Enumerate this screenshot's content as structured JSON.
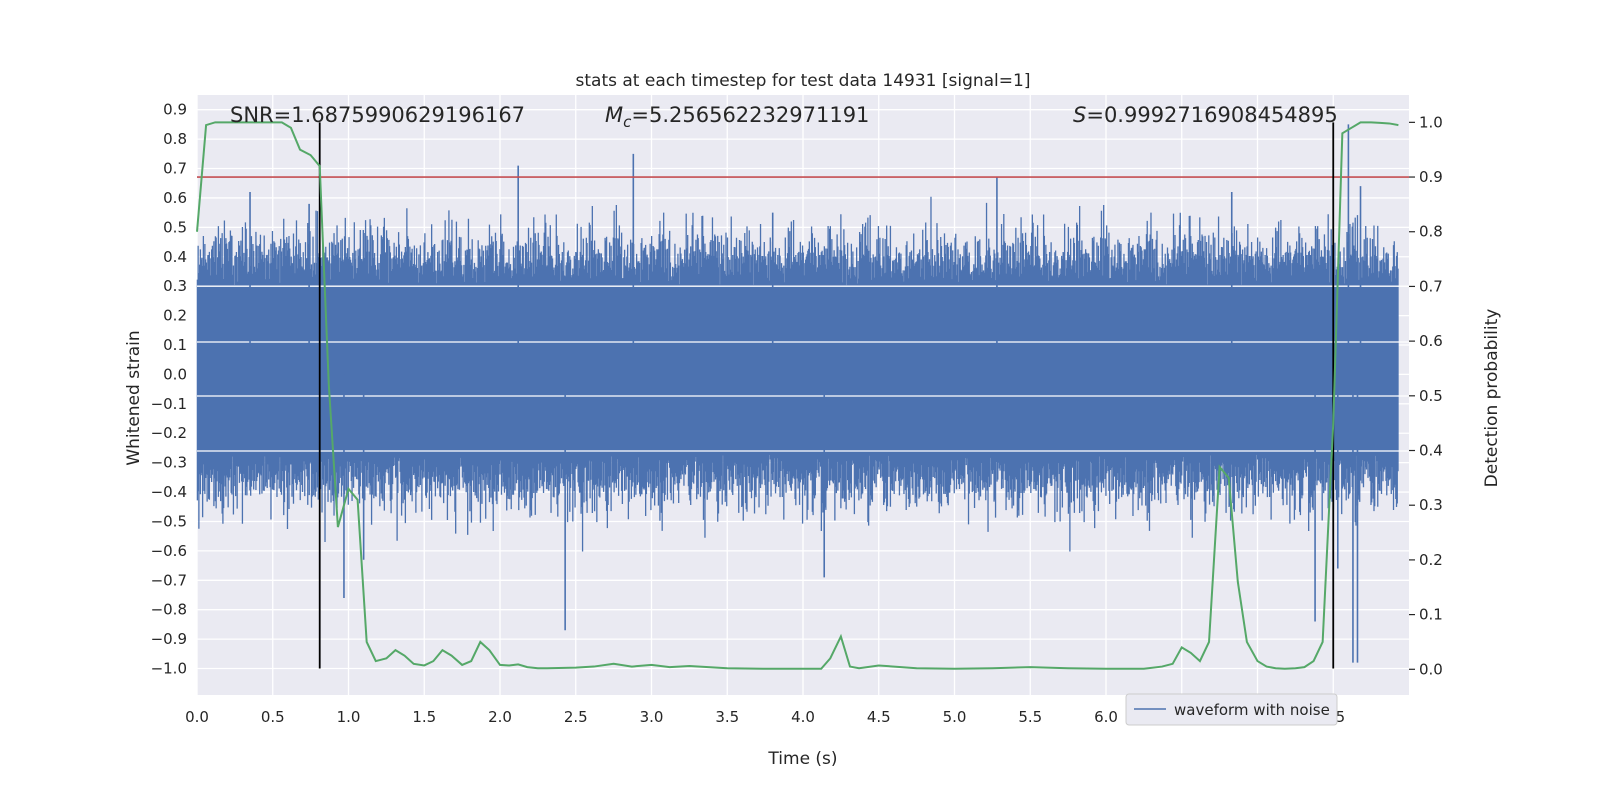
{
  "chart_data": {
    "type": "line",
    "title": "stats at each timestep for test data 14931 [signal=1]",
    "xlabel": "Time (s)",
    "ylabel": "Whitened strain",
    "y2label": "Detection probability",
    "xlim": [
      0.0,
      8.0
    ],
    "ylim": [
      -1.09,
      0.95
    ],
    "y2lim": [
      -0.047,
      1.05
    ],
    "xticks": [
      0.0,
      0.5,
      1.0,
      1.5,
      2.0,
      2.5,
      3.0,
      3.5,
      4.0,
      4.5,
      5.0,
      5.5,
      6.0,
      6.5,
      7.0,
      7.5
    ],
    "xtick_labels": [
      "0.0",
      "0.5",
      "1.0",
      "1.5",
      "2.0",
      "2.5",
      "3.0",
      "3.5",
      "4.0",
      "4.5",
      "5.0",
      "5.5",
      "6.0",
      "6.5",
      "7.0",
      "7.5"
    ],
    "yticks": [
      0.9,
      0.8,
      0.7,
      0.6,
      0.5,
      0.4,
      0.3,
      0.2,
      0.1,
      0.0,
      -0.1,
      -0.2,
      -0.3,
      -0.4,
      -0.5,
      -0.6,
      -0.7,
      -0.8,
      -0.9,
      -1.0
    ],
    "ytick_labels": [
      "0.9",
      "0.8",
      "0.7",
      "0.6",
      "0.5",
      "0.4",
      "0.3",
      "0.2",
      "0.1",
      "0.0",
      "−0.1",
      "−0.2",
      "−0.3",
      "−0.4",
      "−0.5",
      "−0.6",
      "−0.7",
      "−0.8",
      "−0.9",
      "−1.0"
    ],
    "y2ticks": [
      1.0,
      0.9,
      0.8,
      0.7,
      0.6,
      0.5,
      0.4,
      0.3,
      0.2,
      0.1,
      0.0
    ],
    "y2tick_labels": [
      "1.0",
      "0.9",
      "0.8",
      "0.7",
      "0.6",
      "0.5",
      "0.4",
      "0.3",
      "0.2",
      "0.1",
      "0.0"
    ],
    "grid": true,
    "legend": {
      "entries": [
        "waveform with noise"
      ],
      "placement": "lower-right"
    },
    "annotations": {
      "snr": "SNR=1.6875990629196167",
      "mc_symbol": "M",
      "mc_sub": "c",
      "mc_value": "=5.256562232971191",
      "s_symbol": "S",
      "s_value": "=0.9992716908454895"
    },
    "series": [
      {
        "name": "waveform with noise",
        "axis": "left",
        "style": "noise",
        "color": "#4c72b0",
        "samples": 1600,
        "seed": 14931,
        "amplitude_scale": 0.13,
        "envelope_max": 0.62,
        "envelope_min": -0.68,
        "spikes": [
          {
            "x": 0.35,
            "y": 0.62
          },
          {
            "x": 0.74,
            "y": 0.58
          },
          {
            "x": 0.97,
            "y": -0.76
          },
          {
            "x": 1.1,
            "y": -0.63
          },
          {
            "x": 2.12,
            "y": 0.71
          },
          {
            "x": 2.43,
            "y": -0.87
          },
          {
            "x": 2.88,
            "y": 0.75
          },
          {
            "x": 3.8,
            "y": 0.55
          },
          {
            "x": 4.14,
            "y": -0.69
          },
          {
            "x": 5.28,
            "y": 0.67
          },
          {
            "x": 6.83,
            "y": 0.62
          },
          {
            "x": 7.38,
            "y": -0.84
          },
          {
            "x": 7.53,
            "y": -0.66
          },
          {
            "x": 7.6,
            "y": 0.85
          },
          {
            "x": 7.63,
            "y": -0.98
          },
          {
            "x": 7.66,
            "y": -0.98
          },
          {
            "x": 7.68,
            "y": 0.64
          }
        ]
      },
      {
        "name": "detection probability",
        "axis": "right",
        "color": "#55a868",
        "x": [
          0.0,
          0.06,
          0.12,
          0.18,
          0.25,
          0.31,
          0.37,
          0.43,
          0.5,
          0.56,
          0.62,
          0.68,
          0.75,
          0.81,
          0.87,
          0.93,
          1.0,
          1.06,
          1.12,
          1.18,
          1.25,
          1.31,
          1.37,
          1.43,
          1.5,
          1.56,
          1.62,
          1.68,
          1.75,
          1.81,
          1.87,
          1.93,
          2.0,
          2.06,
          2.12,
          2.18,
          2.25,
          2.31,
          2.5,
          2.62,
          2.75,
          2.87,
          3.0,
          3.12,
          3.25,
          3.5,
          3.75,
          4.0,
          4.12,
          4.18,
          4.25,
          4.31,
          4.37,
          4.5,
          4.75,
          5.0,
          5.25,
          5.5,
          5.75,
          6.0,
          6.25,
          6.37,
          6.44,
          6.5,
          6.56,
          6.62,
          6.68,
          6.75,
          6.81,
          6.87,
          6.93,
          7.0,
          7.06,
          7.12,
          7.18,
          7.25,
          7.31,
          7.37,
          7.43,
          7.5,
          7.56,
          7.62,
          7.68,
          7.75,
          7.81,
          7.87,
          7.93
        ],
        "values": [
          0.8,
          0.995,
          1.0,
          1.0,
          1.0,
          1.0,
          1.0,
          1.0,
          1.0,
          1.0,
          0.99,
          0.95,
          0.94,
          0.92,
          0.52,
          0.26,
          0.33,
          0.31,
          0.05,
          0.015,
          0.02,
          0.035,
          0.025,
          0.01,
          0.007,
          0.015,
          0.035,
          0.025,
          0.008,
          0.015,
          0.05,
          0.035,
          0.008,
          0.007,
          0.009,
          0.004,
          0.002,
          0.002,
          0.003,
          0.005,
          0.01,
          0.005,
          0.008,
          0.004,
          0.006,
          0.002,
          0.001,
          0.001,
          0.001,
          0.02,
          0.06,
          0.005,
          0.002,
          0.007,
          0.002,
          0.001,
          0.002,
          0.004,
          0.002,
          0.001,
          0.001,
          0.005,
          0.01,
          0.04,
          0.03,
          0.015,
          0.05,
          0.37,
          0.35,
          0.16,
          0.05,
          0.015,
          0.005,
          0.002,
          0.001,
          0.002,
          0.004,
          0.015,
          0.05,
          0.45,
          0.98,
          0.99,
          1.0,
          1.0,
          0.999,
          0.998,
          0.995
        ]
      },
      {
        "name": "threshold",
        "axis": "right",
        "color": "#c44e52",
        "values": [
          0.9
        ]
      }
    ],
    "vertical_lines": [
      {
        "x": 0.81,
        "color": "#000000"
      },
      {
        "x": 7.5,
        "color": "#000000"
      }
    ]
  }
}
